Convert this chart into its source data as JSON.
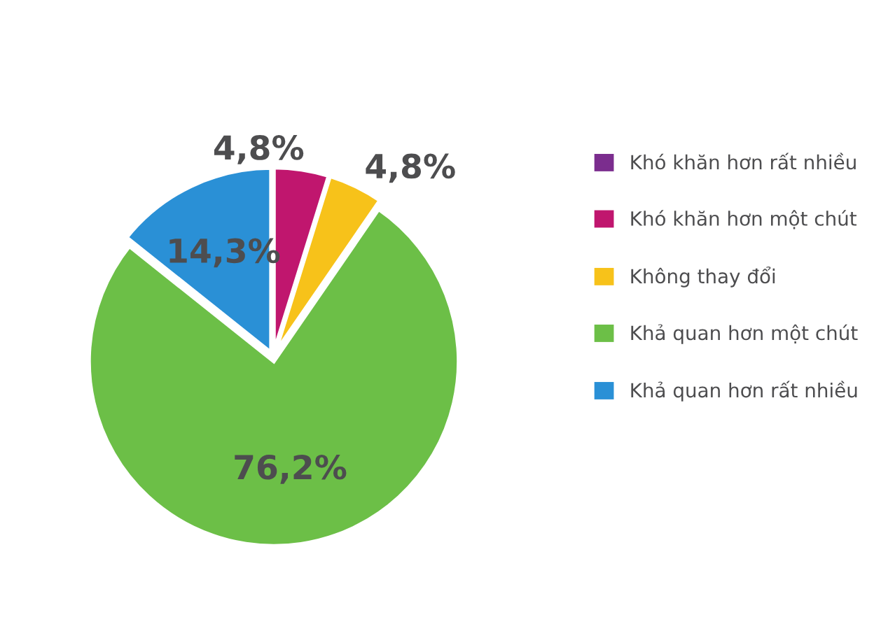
{
  "chart_data": {
    "type": "pie",
    "categories": [
      "Khó khăn hơn rất nhiều",
      "Khó khăn hơn một chút",
      "Không thay đổi",
      "Khả quan hơn một chút",
      "Khả quan hơn rất nhiều"
    ],
    "values": [
      0,
      4.8,
      4.8,
      76.2,
      14.3
    ],
    "colors": [
      "#7b2d8e",
      "#c0166e",
      "#f7c21a",
      "#6cbf47",
      "#2a90d6"
    ],
    "value_labels": [
      null,
      "4,8%",
      "4,8%",
      "76,2%",
      "14,3%"
    ],
    "legend": "right"
  }
}
